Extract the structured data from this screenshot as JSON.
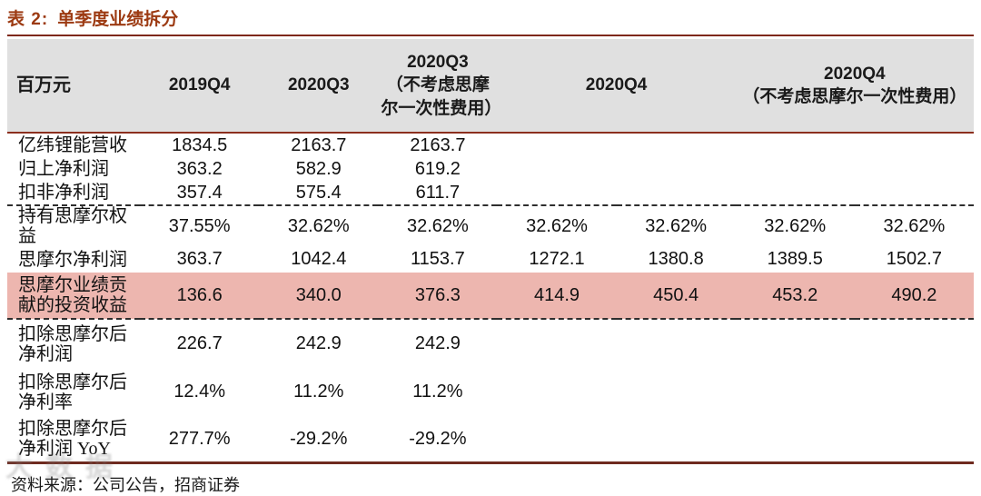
{
  "title": {
    "prefix": "表 2:",
    "text": "单季度业绩拆分"
  },
  "table": {
    "unit": "百万元",
    "columns": [
      {
        "label": "2019Q4",
        "sub": "",
        "span": 1
      },
      {
        "label": "2020Q3",
        "sub": "",
        "span": 1
      },
      {
        "label": "2020Q3",
        "sub": "（不考虑思摩尔一次性费用）",
        "span": 1
      },
      {
        "label": "2020Q4",
        "sub": "",
        "span": 2
      },
      {
        "label": "2020Q4",
        "sub": "（不考虑思摩尔一次性费用）",
        "span": 2
      }
    ],
    "rows": [
      {
        "label": "亿纬锂能营收",
        "values": [
          "1834.5",
          "2163.7",
          "2163.7",
          "",
          "",
          "",
          ""
        ],
        "highlight": false,
        "separator_below": false
      },
      {
        "label": "归上净利润",
        "values": [
          "363.2",
          "582.9",
          "619.2",
          "",
          "",
          "",
          ""
        ],
        "highlight": false,
        "separator_below": false
      },
      {
        "label": "扣非净利润",
        "values": [
          "357.4",
          "575.4",
          "611.7",
          "",
          "",
          "",
          ""
        ],
        "highlight": false,
        "separator_below": true
      },
      {
        "label": "持有思摩尔权益",
        "values": [
          "37.55%",
          "32.62%",
          "32.62%",
          "32.62%",
          "32.62%",
          "32.62%",
          "32.62%"
        ],
        "highlight": false,
        "separator_below": false
      },
      {
        "label": "思摩尔净利润",
        "values": [
          "363.7",
          "1042.4",
          "1153.7",
          "1272.1",
          "1380.8",
          "1389.5",
          "1502.7"
        ],
        "highlight": false,
        "separator_below": false
      },
      {
        "label": "思摩尔业绩贡献的投资收益",
        "values": [
          "136.6",
          "340.0",
          "376.3",
          "414.9",
          "450.4",
          "453.2",
          "490.2"
        ],
        "highlight": true,
        "separator_below": true
      },
      {
        "label": "扣除思摩尔后净利润",
        "values": [
          "226.7",
          "242.9",
          "242.9",
          "",
          "",
          "",
          ""
        ],
        "highlight": false,
        "separator_below": false
      },
      {
        "label": "扣除思摩尔后净利率",
        "values": [
          "12.4%",
          "11.2%",
          "11.2%",
          "",
          "",
          "",
          ""
        ],
        "highlight": false,
        "separator_below": false
      },
      {
        "label": "扣除思摩尔后净利润 YoY",
        "values": [
          "277.7%",
          "-29.2%",
          "-29.2%",
          "",
          "",
          "",
          ""
        ],
        "highlight": false,
        "separator_below": false
      }
    ]
  },
  "footer": {
    "source": "资料来源：公司公告，招商证券"
  },
  "watermark_text": "大数据",
  "colors": {
    "accent_title": "#9C3A12",
    "rule_line": "#7E2817",
    "header_bg": "#E0E0E0",
    "highlight_bg": "#EDB6AF",
    "bottom_rule": "#6E2A1F"
  }
}
